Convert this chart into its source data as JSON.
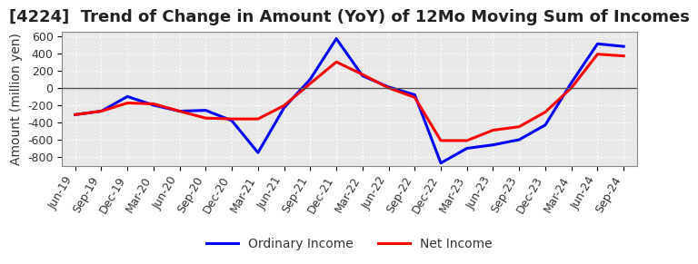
{
  "title": "[4224]  Trend of Change in Amount (YoY) of 12Mo Moving Sum of Incomes",
  "ylabel": "Amount (million yen)",
  "plot_bg_color": "#e8e8e8",
  "fig_bg_color": "#ffffff",
  "grid_color": "#ffffff",
  "ylim": [
    -900,
    650
  ],
  "yticks": [
    -800,
    -600,
    -400,
    -200,
    0,
    200,
    400,
    600
  ],
  "x_labels": [
    "Jun-19",
    "Sep-19",
    "Dec-19",
    "Mar-20",
    "Jun-20",
    "Sep-20",
    "Dec-20",
    "Mar-21",
    "Jun-21",
    "Sep-21",
    "Dec-21",
    "Mar-22",
    "Jun-22",
    "Sep-22",
    "Dec-22",
    "Mar-23",
    "Jun-23",
    "Sep-23",
    "Dec-23",
    "Mar-24",
    "Jun-24",
    "Sep-24"
  ],
  "ordinary_income": [
    -310,
    -270,
    -100,
    -200,
    -270,
    -260,
    -380,
    -750,
    -230,
    100,
    570,
    140,
    10,
    -80,
    -870,
    -700,
    -660,
    -600,
    -430,
    60,
    510,
    480
  ],
  "net_income": [
    -310,
    -270,
    -175,
    -185,
    -270,
    -350,
    -360,
    -360,
    -205,
    50,
    300,
    155,
    0,
    -110,
    -610,
    -610,
    -490,
    -450,
    -280,
    0,
    390,
    370
  ],
  "ordinary_color": "#0000ff",
  "net_color": "#ff0000",
  "legend_ordinary": "Ordinary Income",
  "legend_net": "Net Income",
  "title_fontsize": 13,
  "label_fontsize": 10,
  "tick_fontsize": 9
}
